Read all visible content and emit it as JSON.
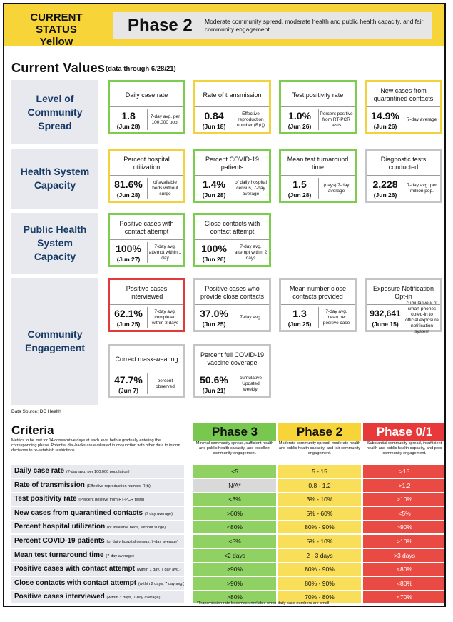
{
  "header": {
    "status_line1": "CURRENT STATUS",
    "status_line2": "Yellow",
    "phase": "Phase 2",
    "description": "Moderate community spread, moderate health and public health capacity, and fair community engagement."
  },
  "current_values": {
    "title": "Current Values",
    "subtitle": "(data through 6/28/21)",
    "rows": [
      {
        "label": "Level of Community Spread"
      },
      {
        "label": "Health System Capacity"
      },
      {
        "label": "Public Health System Capacity"
      },
      {
        "label": "Community Engagement"
      }
    ],
    "cards": [
      {
        "title": "Daily case rate",
        "value": "1.8",
        "date": "(Jun 28)",
        "note": "7-day avg. per 100,000 pop.",
        "status": "green"
      },
      {
        "title": "Rate of transmission",
        "value": "0.84",
        "date": "(Jun 18)",
        "note": "Effective reproduction number (R(t))",
        "status": "yellow"
      },
      {
        "title": "Test positivity rate",
        "value": "1.0%",
        "date": "(Jun 26)",
        "note": "Percent positive from RT-PCR tests",
        "status": "green"
      },
      {
        "title": "New cases from quarantined contacts",
        "value": "14.9%",
        "date": "(Jun 26)",
        "note": "7-day average",
        "status": "yellow"
      },
      {
        "title": "Percent hospital utilization",
        "value": "81.6%",
        "date": "(Jun 28)",
        "note": "of available beds without surge",
        "status": "yellow"
      },
      {
        "title": "Percent COVID-19 patients",
        "value": "1.4%",
        "date": "(Jun 28)",
        "note": "of daily hospital census, 7-day average",
        "status": "green"
      },
      {
        "title": "Mean test turnaround time",
        "value": "1.5",
        "date": "(Jun 28)",
        "note": "(days) 7-day average",
        "status": "green"
      },
      {
        "title": "Diagnostic tests conducted",
        "value": "2,228",
        "date": "(Jun 26)",
        "note": "7-day avg. per million pop.",
        "status": "grey"
      },
      {
        "title": "Positive cases with contact attempt",
        "value": "100%",
        "date": "(Jun 27)",
        "note": "7-day avg. attempt within 1 day",
        "status": "green"
      },
      {
        "title": "Close contacts with contact attempt",
        "value": "100%",
        "date": "(Jun 26)",
        "note": "7-day avg. attempt within 2 days",
        "status": "green"
      },
      {
        "title": "Positive cases interviewed",
        "value": "62.1%",
        "date": "(Jun 25)",
        "note": "7-day avg. completed within 3 days",
        "status": "red"
      },
      {
        "title": "Positive cases who provide close contacts",
        "value": "37.0%",
        "date": "(Jun 25)",
        "note": "7-day avg.",
        "status": "grey"
      },
      {
        "title": "Mean number close contacts provided",
        "value": "1.3",
        "date": "(Jun 25)",
        "note": "7-day avg. mean per positive case",
        "status": "grey"
      },
      {
        "title": "Exposure Notification Opt-in",
        "value": "932,641",
        "date": "(June 15)",
        "note": "cumulative # of smart phones opted-in to official exposure notification system",
        "status": "grey"
      },
      {
        "title": "Correct mask-wearing",
        "value": "47.7%",
        "date": "(Jun 7)",
        "note": "percent observed",
        "status": "grey"
      },
      {
        "title": "Percent full COVID-19 vaccine coverage",
        "value": "50.6%",
        "date": "(Jun 21)",
        "note": "cumulative Updated weekly.",
        "status": "grey"
      }
    ]
  },
  "source": "Data Source: DC Health",
  "criteria": {
    "title": "Criteria",
    "description": "Metrics to be met for 14 consecutive days at each level before gradually entering the corresponding phase. Potential dial-backs are evaluated in conjunction with other data to inform decisions to re-establish restrictions.",
    "phases": [
      {
        "name": "Phase 3",
        "description": "Minimal community spread, sufficient health and public health capacity, and excellent community engagement.",
        "color": "#78c850"
      },
      {
        "name": "Phase 2",
        "description": "Moderate community spread, moderate health and public health capacity, and fair community engagement.",
        "color": "#f7d538"
      },
      {
        "name": "Phase 0/1",
        "description": "Substantial community spread, insufficient health and public health capacity, and poor community engagement.",
        "color": "#e8393a"
      }
    ],
    "rows": [
      {
        "metric": "Daily case rate",
        "qualifier": "(7-day avg. per 100,000 population)",
        "phase3": "<5",
        "phase2": "5 - 15",
        "phase01": ">15"
      },
      {
        "metric": "Rate of transmission",
        "qualifier": "(Effective reproduction number R(t))",
        "phase3": "N/A*",
        "phase2": "0.8 - 1.2",
        "phase01": ">1.2"
      },
      {
        "metric": "Test positivity rate",
        "qualifier": "(Percent positive from RT-PCR tests)",
        "phase3": "<3%",
        "phase2": "3% - 10%",
        "phase01": ">10%"
      },
      {
        "metric": "New cases from quarantined contacts",
        "qualifier": "(7 day average)",
        "phase3": ">60%",
        "phase2": "5% - 60%",
        "phase01": "<5%"
      },
      {
        "metric": "Percent hospital utilization",
        "qualifier": "(of available beds, without surge)",
        "phase3": "<80%",
        "phase2": "80% - 90%",
        "phase01": ">90%"
      },
      {
        "metric": "Percent COVID-19 patients",
        "qualifier": "(of daily hospital census, 7-day average)",
        "phase3": "<5%",
        "phase2": "5% - 10%",
        "phase01": ">10%"
      },
      {
        "metric": "Mean test turnaround time",
        "qualifier": "(7-day average)",
        "phase3": "<2 days",
        "phase2": "2 - 3 days",
        "phase01": ">3 days"
      },
      {
        "metric": "Positive cases with contact attempt",
        "qualifier": "(within 1 day, 7 day avg.)",
        "phase3": ">90%",
        "phase2": "80% - 90%",
        "phase01": "<80%"
      },
      {
        "metric": "Close contacts with contact attempt",
        "qualifier": "(within 2 days, 7 day avg.)",
        "phase3": ">90%",
        "phase2": "80% - 90%",
        "phase01": "<80%"
      },
      {
        "metric": "Positive cases interviewed",
        "qualifier": "(within 3 days, 7-day average)",
        "phase3": ">80%",
        "phase2": "70% - 80%",
        "phase01": "<70%"
      }
    ],
    "footnote": "*Transmission rate becomes unreliable when daily case numbers are small"
  },
  "colors": {
    "green": "#7ccc4e",
    "yellow": "#f2d23b",
    "red": "#e23a3a",
    "grey": "#c4c4c4",
    "cell_green": "#8fd162",
    "cell_yellow": "#f9de5a",
    "cell_red": "#e94b44",
    "cell_grey": "#d9d9d9"
  }
}
